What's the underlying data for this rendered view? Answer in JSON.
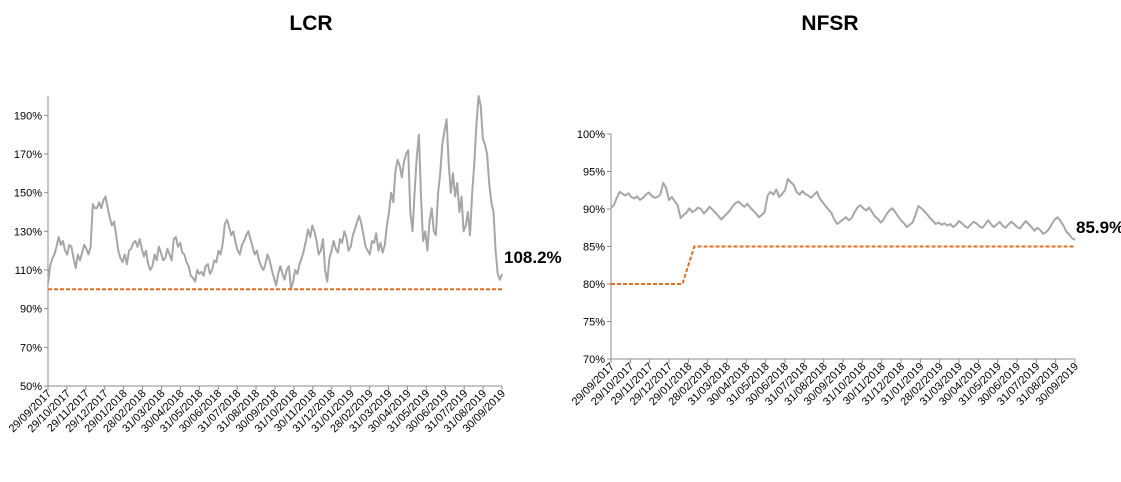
{
  "charts": {
    "lcr": {
      "title": "LCR",
      "end_label": "108.2%",
      "colors": {
        "series": "#a6a6a6",
        "threshold": "#e07020"
      },
      "chart_data": {
        "type": "line",
        "title": "LCR",
        "ylim": [
          50,
          200
        ],
        "y_ticks": [
          50,
          70,
          90,
          110,
          130,
          150,
          170,
          190
        ],
        "y_tick_labels": [
          "50%",
          "70%",
          "90%",
          "110%",
          "130%",
          "150%",
          "170%",
          "190%"
        ],
        "x_tick_labels": [
          "29/09/2017",
          "29/10/2017",
          "29/11/2017",
          "29/12/2017",
          "29/01/2018",
          "28/02/2018",
          "31/03/2018",
          "30/04/2018",
          "31/05/2018",
          "30/06/2018",
          "31/07/2018",
          "31/08/2018",
          "30/09/2018",
          "31/10/2018",
          "30/11/2018",
          "31/12/2018",
          "31/01/2019",
          "28/02/2019",
          "31/03/2019",
          "30/04/2019",
          "31/05/2019",
          "30/06/2019",
          "31/07/2019",
          "31/08/2019",
          "30/09/2019"
        ],
        "series": [
          {
            "role": "ratio",
            "values": [
              103,
              112,
              116,
              118,
              122,
              127,
              123,
              125,
              120,
              118,
              123,
              122,
              116,
              111,
              118,
              115,
              119,
              123,
              121,
              118,
              122,
              144,
              142,
              142,
              145,
              142,
              146,
              148,
              142,
              137,
              133,
              135,
              128,
              120,
              116,
              114,
              118,
              113,
              120,
              121,
              124,
              125,
              122,
              126,
              121,
              117,
              120,
              113,
              110,
              112,
              118,
              115,
              122,
              119,
              115,
              116,
              121,
              118,
              115,
              126,
              127,
              122,
              124,
              119,
              118,
              114,
              112,
              107,
              106,
              104,
              110,
              108,
              109,
              107,
              112,
              113,
              108,
              110,
              115,
              114,
              120,
              118,
              124,
              134,
              136,
              132,
              128,
              130,
              124,
              120,
              118,
              123,
              125,
              128,
              130,
              126,
              122,
              118,
              120,
              115,
              112,
              110,
              113,
              118,
              115,
              110,
              106,
              102,
              108,
              112,
              108,
              105,
              110,
              112,
              100,
              104,
              110,
              108,
              113,
              116,
              120,
              125,
              131,
              127,
              133,
              130,
              125,
              118,
              120,
              126,
              110,
              104,
              116,
              120,
              125,
              121,
              119,
              126,
              124,
              130,
              127,
              120,
              122,
              128,
              131,
              135,
              138,
              134,
              128,
              122,
              120,
              118,
              125,
              124,
              129,
              120,
              124,
              119,
              123,
              133,
              140,
              150,
              145,
              161,
              167,
              164,
              158,
              166,
              170,
              172,
              140,
              130,
              150,
              168,
              180,
              148,
              125,
              130,
              120,
              135,
              142,
              130,
              128,
              150,
              160,
              175,
              182,
              188,
              165,
              150,
              160,
              148,
              155,
              140,
              148,
              130,
              133,
              140,
              128,
              150,
              165,
              185,
              200,
              195,
              178,
              175,
              170,
              155,
              145,
              140,
              120,
              108,
              105,
              108
            ]
          },
          {
            "role": "threshold",
            "values": [
              100,
              100
            ]
          }
        ]
      }
    },
    "nfsr": {
      "title": "NFSR",
      "end_label": "85.9%",
      "colors": {
        "series": "#a6a6a6",
        "threshold": "#e07020"
      },
      "chart_data": {
        "type": "line",
        "title": "NFSR",
        "ylim": [
          70,
          100
        ],
        "y_ticks": [
          70,
          75,
          80,
          85,
          90,
          95,
          100
        ],
        "y_tick_labels": [
          "70%",
          "75%",
          "80%",
          "85%",
          "90%",
          "95%",
          "100%"
        ],
        "x_tick_labels": [
          "29/09/2017",
          "29/10/2017",
          "29/11/2017",
          "29/12/2017",
          "29/01/2018",
          "28/02/2018",
          "31/03/2018",
          "30/04/2018",
          "31/05/2018",
          "30/06/2018",
          "31/07/2018",
          "31/08/2018",
          "30/09/2018",
          "31/10/2018",
          "30/11/2018",
          "31/12/2018",
          "31/01/2019",
          "28/02/2019",
          "31/03/2019",
          "30/04/2019",
          "31/05/2019",
          "30/06/2019",
          "31/07/2019",
          "31/08/2019",
          "30/09/2019"
        ],
        "series": [
          {
            "role": "ratio",
            "values": [
              90.2,
              90.5,
              91.5,
              92.3,
              92.0,
              91.8,
              92.1,
              91.6,
              91.4,
              91.7,
              91.2,
              91.5,
              91.9,
              92.2,
              91.8,
              91.5,
              91.6,
              91.9,
              93.5,
              92.8,
              91.2,
              91.6,
              91.0,
              90.5,
              88.8,
              89.2,
              89.5,
              90.1,
              89.6,
              89.8,
              90.2,
              90.0,
              89.4,
              89.8,
              90.3,
              89.9,
              89.5,
              89.1,
              88.6,
              89.0,
              89.4,
              89.8,
              90.4,
              90.8,
              91.0,
              90.6,
              90.3,
              90.7,
              90.2,
              89.8,
              89.4,
              88.9,
              89.2,
              89.6,
              91.8,
              92.3,
              91.9,
              92.6,
              91.6,
              92.0,
              92.5,
              94.0,
              93.6,
              93.2,
              92.3,
              91.9,
              92.4,
              92.0,
              91.8,
              91.5,
              91.9,
              92.3,
              91.4,
              90.9,
              90.4,
              89.9,
              89.5,
              88.6,
              88.0,
              88.3,
              88.6,
              88.9,
              88.5,
              88.8,
              89.6,
              90.2,
              90.5,
              90.1,
              89.8,
              90.2,
              89.6,
              89.0,
              88.7,
              88.2,
              88.6,
              89.3,
              89.8,
              90.1,
              89.6,
              89.0,
              88.5,
              88.1,
              87.6,
              87.9,
              88.2,
              89.2,
              90.4,
              90.1,
              89.7,
              89.3,
              88.8,
              88.4,
              88.0,
              88.2,
              87.9,
              88.1,
              87.8,
              88.0,
              87.6,
              87.9,
              88.4,
              88.1,
              87.7,
              87.5,
              87.9,
              88.3,
              88.1,
              87.7,
              87.5,
              87.9,
              88.5,
              88.0,
              87.6,
              87.9,
              88.3,
              87.8,
              87.5,
              87.9,
              88.3,
              88.0,
              87.6,
              87.4,
              87.9,
              88.4,
              88.0,
              87.6,
              87.1,
              87.5,
              87.2,
              86.7,
              86.9,
              87.3,
              88.0,
              88.6,
              88.9,
              88.4,
              87.8,
              87.0,
              86.6,
              86.1,
              85.9
            ]
          },
          {
            "role": "threshold",
            "values": [
              80,
              80,
              80,
              80,
              80,
              80,
              80,
              85,
              85,
              85,
              85,
              85,
              85,
              85,
              85,
              85,
              85,
              85,
              85,
              85,
              85,
              85,
              85,
              85,
              85,
              85,
              85,
              85,
              85,
              85,
              85,
              85,
              85,
              85,
              85,
              85,
              85,
              85,
              85,
              85
            ]
          }
        ]
      }
    }
  }
}
